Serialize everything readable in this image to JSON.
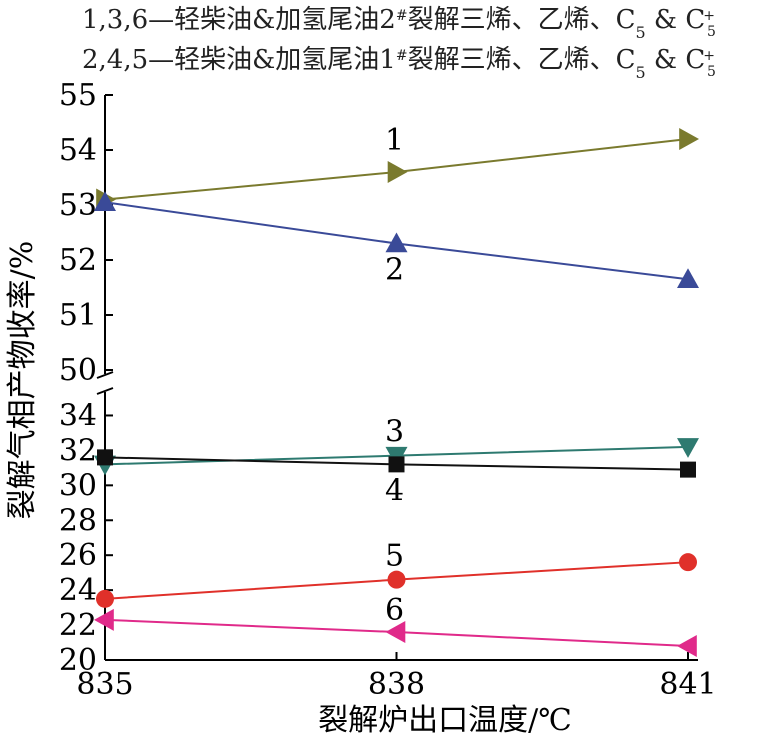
{
  "legend": {
    "line1": "1,3,6—轻柴油&加氢尾油2",
    "line1_sup": "#",
    "line1_suffix": "裂解三烯、乙烯、C",
    "line2": "2,4,5—轻柴油&加氢尾油1",
    "line2_sup": "#",
    "line2_suffix": "裂解三烯、乙烯、C"
  },
  "chart_data": {
    "type": "line",
    "xlabel": "裂解炉出口温度/℃",
    "ylabel": "裂解气相产物收率/%",
    "x": [
      835,
      838,
      841
    ],
    "x_ticks": [
      "835",
      "838",
      "841"
    ],
    "y_axis_break": true,
    "y_upper_range": [
      50,
      55
    ],
    "y_upper_ticks": [
      "50",
      "51",
      "52",
      "53",
      "54",
      "55"
    ],
    "y_lower_range": [
      20,
      35
    ],
    "y_lower_ticks": [
      "20",
      "22",
      "24",
      "26",
      "28",
      "30",
      "32",
      "34"
    ],
    "series": [
      {
        "label": "1",
        "panel": "upper",
        "values": [
          53.1,
          53.6,
          54.2
        ],
        "color": "#7a7a2e",
        "marker": "triangle-right"
      },
      {
        "label": "2",
        "panel": "upper",
        "values": [
          53.05,
          52.3,
          51.65
        ],
        "color": "#3a4a98",
        "marker": "triangle-up"
      },
      {
        "label": "3",
        "panel": "lower",
        "values": [
          31.2,
          31.7,
          32.2
        ],
        "color": "#2e7a70",
        "marker": "triangle-down"
      },
      {
        "label": "4",
        "panel": "lower",
        "values": [
          31.6,
          31.2,
          30.9
        ],
        "color": "#111111",
        "marker": "square"
      },
      {
        "label": "5",
        "panel": "lower",
        "values": [
          23.5,
          24.6,
          25.6
        ],
        "color": "#e0302a",
        "marker": "circle"
      },
      {
        "label": "6",
        "panel": "lower",
        "values": [
          22.3,
          21.6,
          20.8
        ],
        "color": "#e02a8a",
        "marker": "triangle-left"
      }
    ]
  }
}
